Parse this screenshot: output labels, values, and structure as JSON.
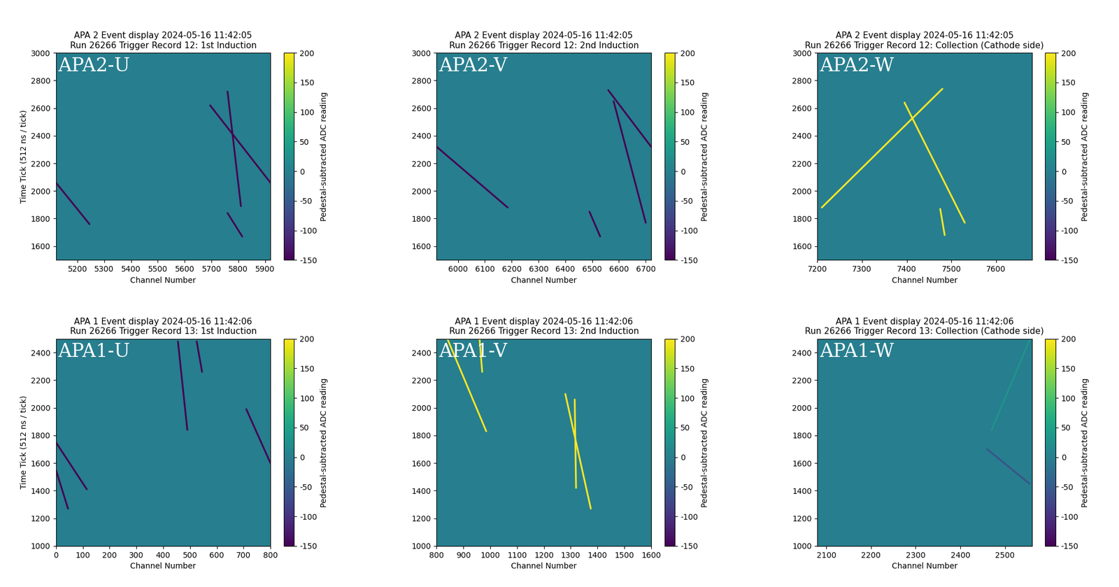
{
  "chart_data": [
    {
      "type": "heatmap",
      "panel_label": "APA2-U",
      "title": "APA 2 Event display 2024-05-16 11:42:05\nRun 26266 Trigger Record 12: 1st Induction",
      "xlabel": "Channel Number",
      "ylabel": "Time Tick (512 ns / tick)",
      "xlim": [
        5120,
        5920
      ],
      "ylim": [
        1500,
        3000
      ],
      "xticks": [
        5200,
        5300,
        5400,
        5500,
        5600,
        5700,
        5800,
        5900
      ],
      "yticks": [
        1600,
        1800,
        2000,
        2200,
        2400,
        2600,
        2800,
        3000
      ],
      "background_value": 0,
      "colorbar": {
        "label": "Pedestal-subtracted ADC reading",
        "range": [
          -150,
          200
        ],
        "ticks": [
          -150,
          -100,
          -50,
          0,
          50,
          100,
          150,
          200
        ]
      },
      "tracks": [
        {
          "x": [
            5120,
            5245
          ],
          "y": [
            2060,
            1760
          ],
          "value": -150
        },
        {
          "x": [
            5760,
            5810
          ],
          "y": [
            2720,
            1890
          ],
          "value": -150
        },
        {
          "x": [
            5695,
            5920
          ],
          "y": [
            2620,
            2060
          ],
          "value": -150
        },
        {
          "x": [
            5760,
            5815
          ],
          "y": [
            1840,
            1670
          ],
          "value": -150
        }
      ]
    },
    {
      "type": "heatmap",
      "panel_label": "APA2-V",
      "title": "APA 2 Event display 2024-05-16 11:42:05\nRun 26266 Trigger Record 12: 2nd Induction",
      "xlabel": "Channel Number",
      "xlim": [
        5920,
        6720
      ],
      "ylim": [
        1500,
        3000
      ],
      "xticks": [
        6000,
        6100,
        6200,
        6300,
        6400,
        6500,
        6600,
        6700
      ],
      "yticks": [
        1600,
        1800,
        2000,
        2200,
        2400,
        2600,
        2800,
        3000
      ],
      "background_value": 0,
      "colorbar": {
        "label": "Pedestal-subtracted ADC reading",
        "range": [
          -150,
          200
        ],
        "ticks": [
          -150,
          -100,
          -50,
          0,
          50,
          100,
          150,
          200
        ]
      },
      "tracks": [
        {
          "x": [
            5920,
            6185
          ],
          "y": [
            2320,
            1880
          ],
          "value": -150
        },
        {
          "x": [
            6560,
            6720
          ],
          "y": [
            2730,
            2320
          ],
          "value": -150
        },
        {
          "x": [
            6580,
            6700
          ],
          "y": [
            2650,
            1770
          ],
          "value": -150
        },
        {
          "x": [
            6490,
            6530
          ],
          "y": [
            1850,
            1670
          ],
          "value": -150
        }
      ]
    },
    {
      "type": "heatmap",
      "panel_label": "APA2-W",
      "title": "APA 2 Event display 2024-05-16 11:42:05\nRun 26266 Trigger Record 12: Collection (Cathode side)",
      "xlabel": "Channel Number",
      "xlim": [
        7200,
        7680
      ],
      "ylim": [
        1500,
        3000
      ],
      "xticks": [
        7200,
        7300,
        7400,
        7500,
        7600
      ],
      "yticks": [
        1600,
        1800,
        2000,
        2200,
        2400,
        2600,
        2800,
        3000
      ],
      "background_value": 0,
      "colorbar": {
        "label": "Pedestal-subtracted ADC reading",
        "range": [
          -150,
          200
        ],
        "ticks": [
          -150,
          -100,
          -50,
          0,
          50,
          100,
          150,
          200
        ]
      },
      "tracks": [
        {
          "x": [
            7210,
            7480
          ],
          "y": [
            1880,
            2740
          ],
          "value": 200
        },
        {
          "x": [
            7395,
            7530
          ],
          "y": [
            2640,
            1770
          ],
          "value": 200
        },
        {
          "x": [
            7475,
            7485
          ],
          "y": [
            1870,
            1680
          ],
          "value": 200
        }
      ]
    },
    {
      "type": "heatmap",
      "panel_label": "APA1-U",
      "title": "APA 1 Event display 2024-05-16 11:42:06\nRun 26266 Trigger Record 13: 1st Induction",
      "xlabel": "Channel Number",
      "ylabel": "Time Tick (512 ns / tick)",
      "xlim": [
        0,
        800
      ],
      "ylim": [
        1000,
        2500
      ],
      "xticks": [
        0,
        100,
        200,
        300,
        400,
        500,
        600,
        700,
        800
      ],
      "yticks": [
        1000,
        1200,
        1400,
        1600,
        1800,
        2000,
        2200,
        2400
      ],
      "background_value": 0,
      "colorbar": {
        "label": "Pedestal-subtracted ADC reading",
        "range": [
          -150,
          200
        ],
        "ticks": [
          -150,
          -100,
          -50,
          0,
          50,
          100,
          150,
          200
        ]
      },
      "tracks": [
        {
          "x": [
            0,
            115
          ],
          "y": [
            1750,
            1410
          ],
          "value": -150
        },
        {
          "x": [
            0,
            45
          ],
          "y": [
            1550,
            1270
          ],
          "value": -150
        },
        {
          "x": [
            455,
            490
          ],
          "y": [
            2480,
            1840
          ],
          "value": -150
        },
        {
          "x": [
            525,
            545
          ],
          "y": [
            2480,
            2260
          ],
          "value": -150
        },
        {
          "x": [
            710,
            800
          ],
          "y": [
            1990,
            1600
          ],
          "value": -150
        }
      ]
    },
    {
      "type": "heatmap",
      "panel_label": "APA1-V",
      "title": "APA 1 Event display 2024-05-16 11:42:06\nRun 26266 Trigger Record 13: 2nd Induction",
      "xlabel": "Channel Number",
      "xlim": [
        800,
        1600
      ],
      "ylim": [
        1000,
        2500
      ],
      "xticks": [
        800,
        900,
        1000,
        1100,
        1200,
        1300,
        1400,
        1500,
        1600
      ],
      "yticks": [
        1000,
        1200,
        1400,
        1600,
        1800,
        2000,
        2200,
        2400
      ],
      "background_value": 0,
      "colorbar": {
        "label": "Pedestal-subtracted ADC reading",
        "range": [
          -150,
          200
        ],
        "ticks": [
          -150,
          -100,
          -50,
          0,
          50,
          100,
          150,
          200
        ]
      },
      "tracks": [
        {
          "x": [
            840,
            985
          ],
          "y": [
            2500,
            1830
          ],
          "value": 200
        },
        {
          "x": [
            960,
            970
          ],
          "y": [
            2500,
            2260
          ],
          "value": 200
        },
        {
          "x": [
            1280,
            1375
          ],
          "y": [
            2100,
            1270
          ],
          "value": 200
        },
        {
          "x": [
            1315,
            1320
          ],
          "y": [
            2060,
            1420
          ],
          "value": 200
        }
      ]
    },
    {
      "type": "heatmap",
      "panel_label": "APA1-W",
      "title": "APA 1 Event display 2024-05-16 11:42:06\nRun 26266 Trigger Record 13: Collection (Cathode side)",
      "xlabel": "Channel Number",
      "xlim": [
        2080,
        2560
      ],
      "ylim": [
        1000,
        2500
      ],
      "xticks": [
        2100,
        2200,
        2300,
        2400,
        2500
      ],
      "yticks": [
        1000,
        1200,
        1400,
        1600,
        1800,
        2000,
        2200,
        2400
      ],
      "background_value": 0,
      "colorbar": {
        "label": "Pedestal-subtracted ADC reading",
        "range": [
          -150,
          200
        ],
        "ticks": [
          -150,
          -100,
          -50,
          0,
          50,
          100,
          150,
          200
        ]
      },
      "tracks": [
        {
          "x": [
            2555,
            2470
          ],
          "y": [
            2490,
            1840
          ],
          "value": 30
        },
        {
          "x": [
            2460,
            2555
          ],
          "y": [
            1700,
            1450
          ],
          "value": -60
        }
      ]
    }
  ]
}
